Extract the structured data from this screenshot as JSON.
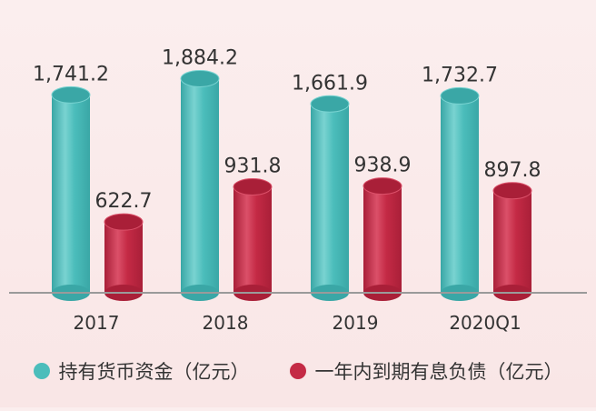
{
  "chart_data": {
    "type": "bar",
    "categories": [
      "2017",
      "2018",
      "2019",
      "2020Q1"
    ],
    "series": [
      {
        "name": "持有货币资金（亿元）",
        "values": [
          1741.2,
          1884.2,
          1661.9,
          1732.7
        ],
        "labels": [
          "1,741.2",
          "1,884.2",
          "1,661.9",
          "1,732.7"
        ],
        "color": "#4bbdbb"
      },
      {
        "name": "一年内到期有息负债（亿元）",
        "values": [
          622.7,
          931.8,
          938.9,
          897.8
        ],
        "labels": [
          "622.7",
          "931.8",
          "938.9",
          "897.8"
        ],
        "color": "#c42a45"
      }
    ],
    "ylim": [
      0,
      2000
    ],
    "grid": false,
    "legend": "bottom"
  }
}
